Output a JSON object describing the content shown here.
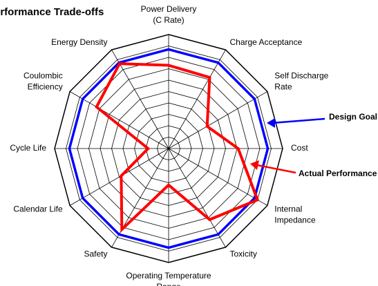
{
  "chart_data": {
    "type": "radar",
    "title": "erformance Trade-offs",
    "categories": [
      [
        "Power Delivery",
        "(C Rate)"
      ],
      "Charge Acceptance",
      [
        "Self Discharge",
        "Rate"
      ],
      "Cost",
      [
        "Internal",
        "Impedance"
      ],
      "Toxicity",
      [
        "Operating Temperature",
        "Range"
      ],
      "Safety",
      "Calendar Life",
      "Cycle Life",
      [
        "Coulombic",
        "Efficiency"
      ],
      "Energy Density"
    ],
    "series": [
      {
        "name": "Design Goal",
        "color": "#0000ff",
        "values": [
          8.7,
          8.7,
          8.7,
          8.7,
          8.7,
          8.7,
          8.7,
          8.7,
          8.7,
          8.7,
          8.7,
          8.7
        ]
      },
      {
        "name": "Actual Performance",
        "color": "#ff0000",
        "values": [
          7.3,
          7.2,
          3.9,
          6.1,
          9.0,
          7.2,
          3.2,
          8.2,
          4.8,
          1.8,
          7.3,
          8.6
        ]
      }
    ],
    "rlim": [
      0,
      10
    ],
    "rticks": [
      1,
      2,
      3,
      4,
      5,
      6,
      7,
      8,
      9,
      10
    ]
  }
}
